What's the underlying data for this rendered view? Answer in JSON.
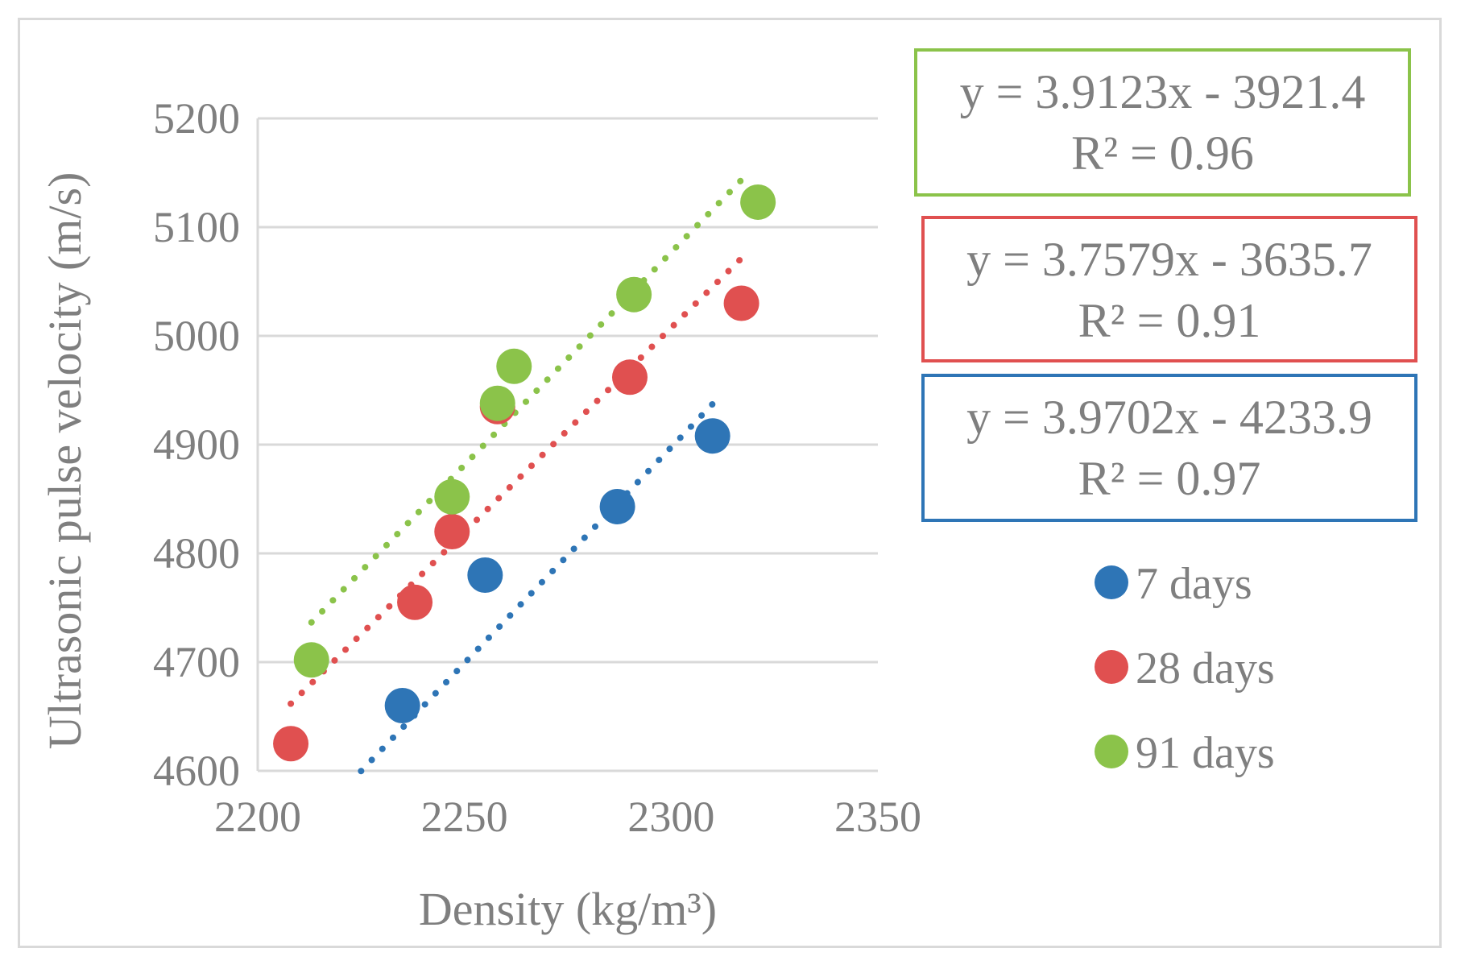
{
  "chart_data": {
    "type": "scatter",
    "title": "",
    "xlabel": "Density (kg/m³)",
    "ylabel": "Ultrasonic pulse velocity (m/s)",
    "xlim": [
      2200,
      2350
    ],
    "ylim": [
      4600,
      5200
    ],
    "xticks": [
      "2200",
      "2250",
      "2300",
      "2350"
    ],
    "yticks": [
      "4600",
      "4700",
      "4800",
      "4900",
      "5000",
      "5100",
      "5200"
    ],
    "grid": true,
    "legend_position": "right",
    "series": [
      {
        "name": "7 days",
        "color": "#2e75b6",
        "x": [
          2235,
          2255,
          2287,
          2310
        ],
        "y": [
          4660,
          4780,
          4843,
          4908
        ],
        "trendline": {
          "x_range": [
            2225,
            2311
          ],
          "slope": 3.9702,
          "intercept": -4233.9
        },
        "equation": "y = 3.9702x - 4233.9",
        "r2": "R² = 0.97"
      },
      {
        "name": "28 days",
        "color": "#e05050",
        "x": [
          2208,
          2238,
          2247,
          2258,
          2290,
          2317
        ],
        "y": [
          4625,
          4755,
          4820,
          4935,
          4962,
          5030
        ],
        "trendline": {
          "x_range": [
            2208,
            2317
          ],
          "slope": 3.7579,
          "intercept": -3635.7
        },
        "equation": "y = 3.7579x - 3635.7",
        "r2": "R² = 0.91"
      },
      {
        "name": "91 days",
        "color": "#8bc34a",
        "x": [
          2213,
          2247,
          2258,
          2262,
          2291,
          2321
        ],
        "y": [
          4702,
          4852,
          4938,
          4972,
          5038,
          5123
        ],
        "trendline": {
          "x_range": [
            2213,
            2318
          ],
          "slope": 3.9123,
          "intercept": -3921.4
        },
        "equation": "y = 3.9123x - 3921.4",
        "r2": "R² = 0.96"
      }
    ]
  }
}
